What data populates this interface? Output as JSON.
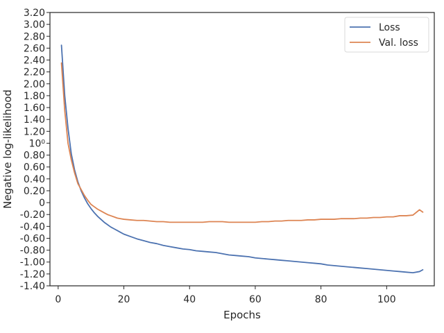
{
  "chart_data": {
    "type": "line",
    "xlabel": "Epochs",
    "ylabel": "Negative log-likelihood",
    "xlim": [
      -2.5,
      114.5
    ],
    "ylim": [
      -1.4,
      3.2
    ],
    "x_ticks": [
      0,
      20,
      40,
      60,
      80,
      100
    ],
    "x_tick_labels": [
      "0",
      "20",
      "40",
      "60",
      "80",
      "100"
    ],
    "y_ticks": [
      -1.4,
      -1.2,
      -1.0,
      -0.8,
      -0.6,
      -0.4,
      -0.2,
      0.0,
      0.2,
      0.4,
      0.6,
      0.8,
      1.0,
      1.2,
      1.4,
      1.6,
      1.8,
      2.0,
      2.2,
      2.4,
      2.6,
      2.8,
      3.0,
      3.2
    ],
    "y_tick_labels": [
      "-1.40",
      "-1.20",
      "-1.00",
      "-0.80",
      "-0.60",
      "-0.40",
      "-0.20",
      "0",
      "0.20",
      "0.40",
      "0.60",
      "0.80",
      "10⁰",
      "1.20",
      "1.40",
      "1.60",
      "1.80",
      "2.00",
      "2.20",
      "2.40",
      "2.60",
      "2.80",
      "3.00",
      "3.20"
    ],
    "grid": false,
    "legend_position": "top-right",
    "series": [
      {
        "name": "Loss",
        "color": "#4c72b0",
        "x": [
          1,
          2,
          3,
          4,
          5,
          6,
          7,
          8,
          9,
          10,
          11,
          12,
          13,
          14,
          15,
          16,
          17,
          18,
          19,
          20,
          22,
          24,
          26,
          28,
          30,
          32,
          34,
          36,
          38,
          40,
          42,
          44,
          46,
          48,
          50,
          52,
          54,
          56,
          58,
          60,
          62,
          64,
          66,
          68,
          70,
          72,
          74,
          76,
          78,
          80,
          82,
          84,
          86,
          88,
          90,
          92,
          94,
          96,
          98,
          100,
          102,
          104,
          106,
          108,
          110,
          111
        ],
        "values": [
          2.65,
          1.8,
          1.25,
          0.82,
          0.55,
          0.35,
          0.2,
          0.08,
          -0.02,
          -0.1,
          -0.17,
          -0.23,
          -0.28,
          -0.33,
          -0.37,
          -0.41,
          -0.44,
          -0.47,
          -0.5,
          -0.53,
          -0.57,
          -0.61,
          -0.64,
          -0.67,
          -0.69,
          -0.72,
          -0.74,
          -0.76,
          -0.78,
          -0.79,
          -0.81,
          -0.82,
          -0.83,
          -0.84,
          -0.86,
          -0.88,
          -0.89,
          -0.9,
          -0.91,
          -0.93,
          -0.94,
          -0.95,
          -0.96,
          -0.97,
          -0.98,
          -0.99,
          -1.0,
          -1.01,
          -1.02,
          -1.03,
          -1.05,
          -1.06,
          -1.07,
          -1.08,
          -1.09,
          -1.1,
          -1.11,
          -1.12,
          -1.13,
          -1.14,
          -1.15,
          -1.16,
          -1.17,
          -1.18,
          -1.16,
          -1.13
        ]
      },
      {
        "name": "Val. loss",
        "color": "#dd8452",
        "x": [
          1,
          2,
          3,
          4,
          5,
          6,
          7,
          8,
          9,
          10,
          11,
          12,
          13,
          14,
          15,
          16,
          17,
          18,
          19,
          20,
          22,
          24,
          26,
          28,
          30,
          32,
          34,
          36,
          38,
          40,
          42,
          44,
          46,
          48,
          50,
          52,
          54,
          56,
          58,
          60,
          62,
          64,
          66,
          68,
          70,
          72,
          74,
          76,
          78,
          80,
          82,
          84,
          86,
          88,
          90,
          92,
          94,
          96,
          98,
          100,
          102,
          104,
          106,
          108,
          110,
          111
        ],
        "values": [
          2.35,
          1.55,
          1.0,
          0.72,
          0.5,
          0.32,
          0.22,
          0.12,
          0.04,
          -0.03,
          -0.07,
          -0.11,
          -0.14,
          -0.17,
          -0.2,
          -0.22,
          -0.24,
          -0.26,
          -0.27,
          -0.28,
          -0.29,
          -0.3,
          -0.3,
          -0.31,
          -0.32,
          -0.32,
          -0.33,
          -0.33,
          -0.33,
          -0.33,
          -0.33,
          -0.33,
          -0.32,
          -0.32,
          -0.32,
          -0.33,
          -0.33,
          -0.33,
          -0.33,
          -0.33,
          -0.32,
          -0.32,
          -0.31,
          -0.31,
          -0.3,
          -0.3,
          -0.3,
          -0.29,
          -0.29,
          -0.28,
          -0.28,
          -0.28,
          -0.27,
          -0.27,
          -0.27,
          -0.26,
          -0.26,
          -0.25,
          -0.25,
          -0.24,
          -0.24,
          -0.22,
          -0.22,
          -0.21,
          -0.12,
          -0.16
        ]
      }
    ]
  }
}
